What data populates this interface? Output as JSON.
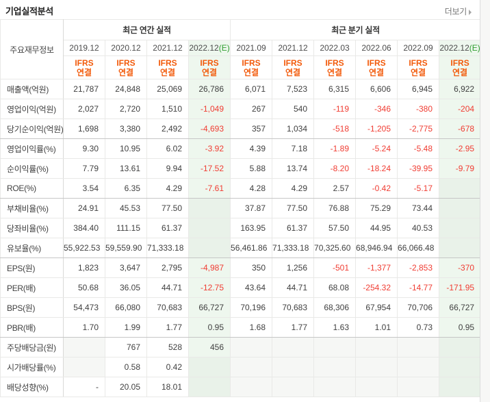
{
  "header": {
    "title": "기업실적분석",
    "more_label": "더보기"
  },
  "table": {
    "corner_label": "주요재무정보",
    "standard_label": "IFRS",
    "basis_label": "연결",
    "estimate_suffix": "(E)",
    "sections": [
      {
        "id": "annual",
        "group_label": "최근 연간 실적",
        "columns": [
          {
            "date": "2019.12",
            "estimate": false
          },
          {
            "date": "2020.12",
            "estimate": false
          },
          {
            "date": "2021.12",
            "estimate": false
          },
          {
            "date": "2022.12",
            "estimate": true
          }
        ]
      },
      {
        "id": "quarterly",
        "group_label": "최근 분기 실적",
        "columns": [
          {
            "date": "2021.09",
            "estimate": false
          },
          {
            "date": "2021.12",
            "estimate": false
          },
          {
            "date": "2022.03",
            "estimate": false
          },
          {
            "date": "2022.06",
            "estimate": false
          },
          {
            "date": "2022.09",
            "estimate": false
          },
          {
            "date": "2022.12",
            "estimate": true
          }
        ]
      }
    ],
    "rows": [
      {
        "label": "매출액(억원)",
        "annual": [
          "21,787",
          "24,848",
          "25,069",
          "26,786"
        ],
        "quarterly": [
          "6,071",
          "7,523",
          "6,315",
          "6,606",
          "6,945",
          "6,922"
        ]
      },
      {
        "label": "영업이익(억원)",
        "annual": [
          "2,027",
          "2,720",
          "1,510",
          "-1,049"
        ],
        "quarterly": [
          "267",
          "540",
          "-119",
          "-346",
          "-380",
          "-204"
        ]
      },
      {
        "label": "당기순이익(억원)",
        "annual": [
          "1,698",
          "3,380",
          "2,492",
          "-4,693"
        ],
        "quarterly": [
          "357",
          "1,034",
          "-518",
          "-1,205",
          "-2,775",
          "-678"
        ]
      },
      {
        "label": "영업이익률(%)",
        "annual": [
          "9.30",
          "10.95",
          "6.02",
          "-3.92"
        ],
        "quarterly": [
          "4.39",
          "7.18",
          "-1.89",
          "-5.24",
          "-5.48",
          "-2.95"
        ]
      },
      {
        "label": "순이익률(%)",
        "annual": [
          "7.79",
          "13.61",
          "9.94",
          "-17.52"
        ],
        "quarterly": [
          "5.88",
          "13.74",
          "-8.20",
          "-18.24",
          "-39.95",
          "-9.79"
        ]
      },
      {
        "label": "ROE(%)",
        "annual": [
          "3.54",
          "6.35",
          "4.29",
          "-7.61"
        ],
        "quarterly": [
          "4.28",
          "4.29",
          "2.57",
          "-0.42",
          "-5.17",
          ""
        ]
      },
      {
        "label": "부채비율(%)",
        "annual": [
          "24.91",
          "45.53",
          "77.50",
          ""
        ],
        "quarterly": [
          "37.87",
          "77.50",
          "76.88",
          "75.29",
          "73.44",
          ""
        ]
      },
      {
        "label": "당좌비율(%)",
        "annual": [
          "384.40",
          "111.15",
          "61.37",
          ""
        ],
        "quarterly": [
          "163.95",
          "61.37",
          "57.50",
          "44.95",
          "40.53",
          ""
        ]
      },
      {
        "label": "유보율(%)",
        "annual": [
          "55,922.53",
          "59,559.90",
          "71,333.18",
          ""
        ],
        "quarterly": [
          "56,461.86",
          "71,333.18",
          "70,325.60",
          "68,946.94",
          "66,066.48",
          ""
        ]
      },
      {
        "label": "EPS(원)",
        "annual": [
          "1,823",
          "3,647",
          "2,795",
          "-4,987"
        ],
        "quarterly": [
          "350",
          "1,256",
          "-501",
          "-1,377",
          "-2,853",
          "-370"
        ]
      },
      {
        "label": "PER(배)",
        "annual": [
          "50.68",
          "36.05",
          "44.71",
          "-12.75"
        ],
        "quarterly": [
          "43.64",
          "44.71",
          "68.08",
          "-254.32",
          "-14.77",
          "-171.95"
        ]
      },
      {
        "label": "BPS(원)",
        "annual": [
          "54,473",
          "66,080",
          "70,683",
          "66,727"
        ],
        "quarterly": [
          "70,196",
          "70,683",
          "68,306",
          "67,954",
          "70,706",
          "66,727"
        ]
      },
      {
        "label": "PBR(배)",
        "annual": [
          "1.70",
          "1.99",
          "1.77",
          "0.95"
        ],
        "quarterly": [
          "1.68",
          "1.77",
          "1.63",
          "1.01",
          "0.73",
          "0.95"
        ]
      },
      {
        "label": "주당배당금(원)",
        "annual": [
          "",
          "767",
          "528",
          "456"
        ],
        "quarterly": [
          "",
          "",
          "",
          "",
          "",
          ""
        ]
      },
      {
        "label": "시가배당률(%)",
        "annual": [
          "",
          "0.58",
          "0.42",
          ""
        ],
        "quarterly": [
          "",
          "",
          "",
          "",
          "",
          ""
        ]
      },
      {
        "label": "배당성향(%)",
        "annual": [
          "-",
          "20.05",
          "18.01",
          ""
        ],
        "quarterly": [
          "",
          "",
          "",
          "",
          "",
          ""
        ]
      }
    ]
  },
  "colors": {
    "accent_orange": "#f25a0a",
    "negative_red": "#f03c32",
    "estimate_green": "#2f9e2f",
    "estimate_column_bg": "#eef7ee"
  }
}
